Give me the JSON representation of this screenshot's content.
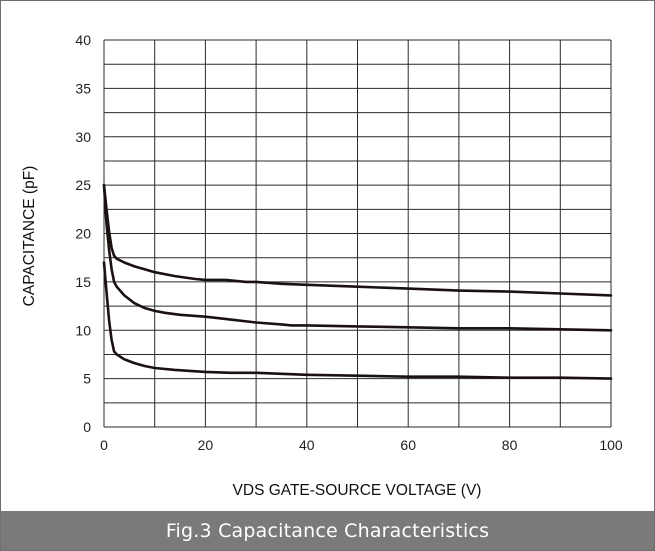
{
  "chart_data": {
    "type": "line",
    "xlabel": "VDS GATE-SOURCE VOLTAGE (V)",
    "ylabel": "CAPACITANCE (pF)",
    "xlim": [
      0,
      100
    ],
    "ylim": [
      0,
      40
    ],
    "x_ticks": [
      "0",
      "20",
      "40",
      "60",
      "80",
      "100"
    ],
    "y_ticks": [
      "0",
      "5",
      "10",
      "15",
      "20",
      "25",
      "30",
      "35",
      "40"
    ],
    "grid": true,
    "series": [
      {
        "x": [
          0,
          0.5,
          1,
          1.5,
          2,
          2.5,
          4,
          6,
          8,
          10,
          14,
          18,
          20,
          24,
          28,
          30,
          35,
          40,
          50,
          60,
          70,
          80,
          90,
          100
        ],
        "values": [
          25,
          22.5,
          20.2,
          18.5,
          17.7,
          17.4,
          17.0,
          16.6,
          16.3,
          16.0,
          15.6,
          15.3,
          15.2,
          15.2,
          15.0,
          15.0,
          14.8,
          14.7,
          14.5,
          14.3,
          14.1,
          14.0,
          13.8,
          13.6
        ],
        "color": "#1a1210"
      },
      {
        "x": [
          0,
          0.5,
          1,
          1.5,
          2,
          2.5,
          4,
          6,
          8,
          10,
          12,
          15,
          20,
          25,
          30,
          35,
          37,
          40,
          50,
          60,
          70,
          80,
          90,
          100
        ],
        "values": [
          25,
          21,
          18.3,
          16.3,
          15.0,
          14.5,
          13.6,
          12.8,
          12.3,
          12.0,
          11.8,
          11.6,
          11.4,
          11.1,
          10.8,
          10.6,
          10.5,
          10.5,
          10.4,
          10.3,
          10.2,
          10.2,
          10.1,
          10.0
        ],
        "color": "#1a1210"
      },
      {
        "x": [
          0,
          0.5,
          1,
          1.5,
          2,
          2.5,
          4,
          6,
          8,
          10,
          14,
          20,
          25,
          28,
          30,
          35,
          40,
          50,
          60,
          70,
          80,
          90,
          100
        ],
        "values": [
          17,
          14,
          11,
          9,
          7.8,
          7.5,
          7.0,
          6.6,
          6.3,
          6.1,
          5.9,
          5.7,
          5.6,
          5.6,
          5.6,
          5.5,
          5.4,
          5.3,
          5.2,
          5.2,
          5.1,
          5.1,
          5.0
        ],
        "color": "#1a1210"
      }
    ]
  },
  "caption": "Fig.3  Capacitance Characteristics"
}
